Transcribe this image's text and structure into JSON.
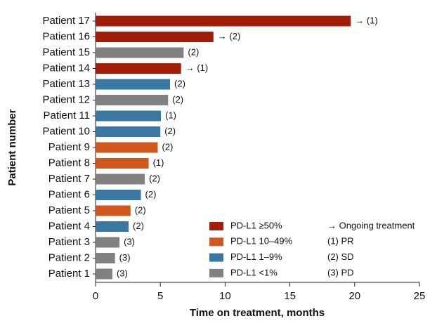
{
  "chart_data": {
    "type": "bar",
    "orientation": "horizontal",
    "xlabel": "Time on treatment, months",
    "ylabel": "Patient number",
    "categories": [
      "Patient 17",
      "Patient 16",
      "Patient 15",
      "Patient 14",
      "Patient 13",
      "Patient 12",
      "Patient 11",
      "Patient 10",
      "Patient 9",
      "Patient 8",
      "Patient 7",
      "Patient 6",
      "Patient 5",
      "Patient 4",
      "Patient 3",
      "Patient 2",
      "Patient 1"
    ],
    "series": [
      {
        "name": "PD-L1 ≥50%",
        "color": "#a31d0b",
        "values": [
          19.7,
          9.1,
          null,
          6.6,
          null,
          null,
          null,
          null,
          null,
          null,
          null,
          null,
          null,
          null,
          null,
          null,
          null
        ]
      },
      {
        "name": "PD-L1 10–49%",
        "color": "#d0581f",
        "values": [
          null,
          null,
          null,
          null,
          null,
          null,
          null,
          null,
          4.8,
          4.1,
          null,
          null,
          2.7,
          null,
          null,
          null,
          null
        ]
      },
      {
        "name": "PD-L1 1–9%",
        "color": "#3a78a2",
        "values": [
          null,
          null,
          null,
          null,
          5.75,
          null,
          5.05,
          5.0,
          null,
          null,
          null,
          3.5,
          null,
          2.55,
          null,
          null,
          null
        ]
      },
      {
        "name": "PD-L1 <1%",
        "color": "#818181",
        "values": [
          null,
          null,
          6.8,
          null,
          null,
          5.6,
          null,
          null,
          null,
          null,
          3.8,
          null,
          null,
          null,
          1.85,
          1.5,
          1.3
        ]
      }
    ],
    "annotations": [
      "→ (1)",
      "→ (2)",
      "(2)",
      "→ (1)",
      "(2)",
      "(2)",
      "(1)",
      "(2)",
      "(2)",
      "(1)",
      "(2)",
      "(2)",
      "(2)",
      "(2)",
      "(3)",
      "(3)",
      "(3)"
    ],
    "legend_notes": [
      "→ Ongoing treatment",
      "(1) PR",
      "(2) SD",
      "(3) PD"
    ],
    "xlim": [
      0,
      25
    ],
    "xticks": [
      0,
      5,
      10,
      15,
      20,
      25
    ]
  }
}
